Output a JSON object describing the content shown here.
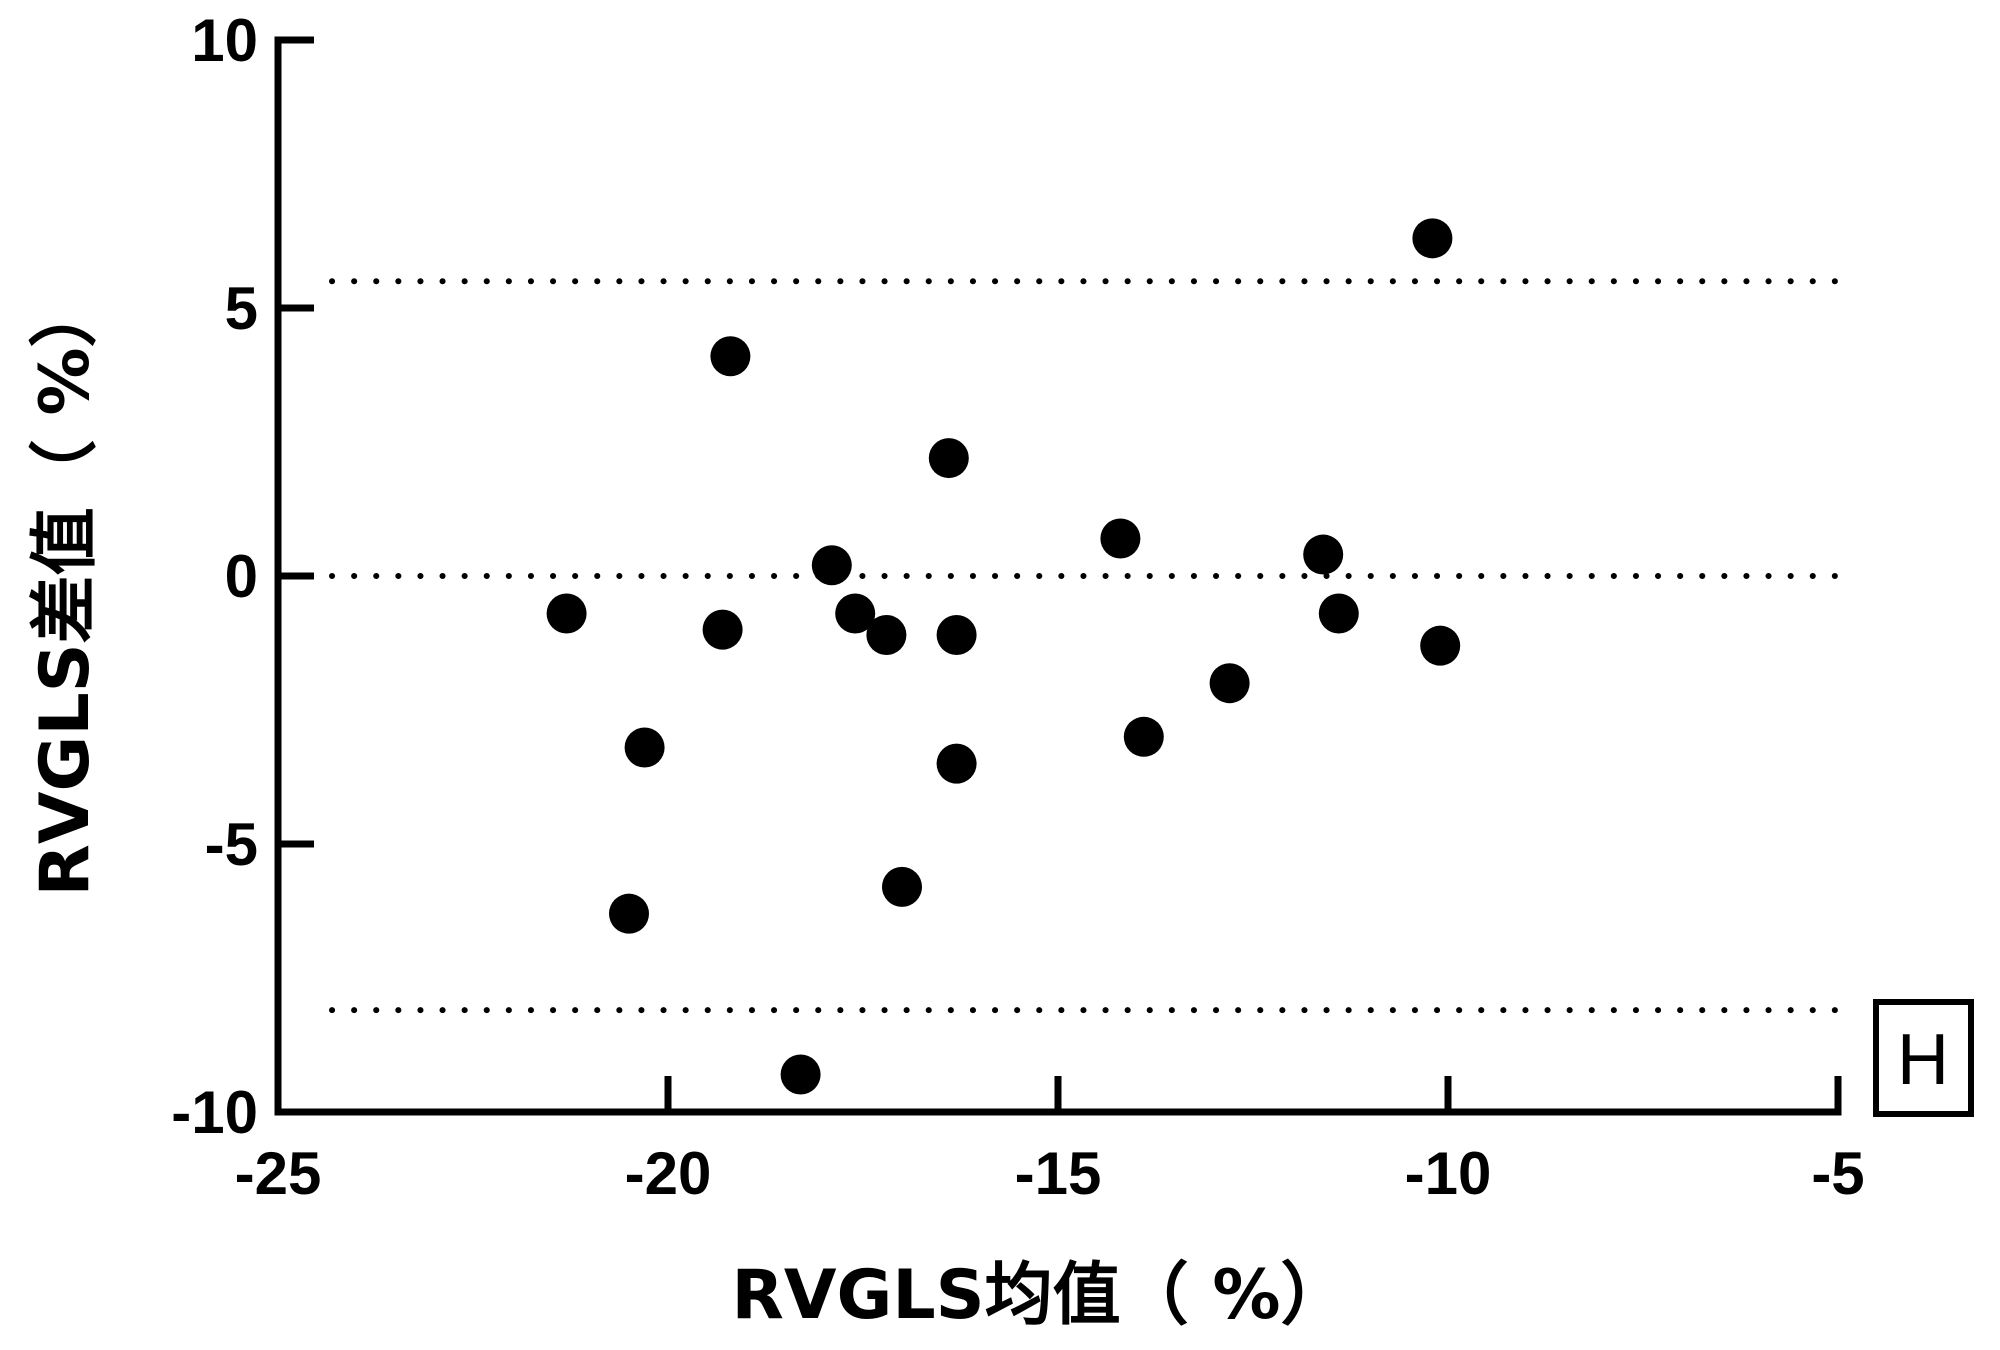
{
  "chart_data": {
    "type": "scatter",
    "title": "",
    "xlabel": "RVGLS均值（ %）",
    "ylabel": "RVGLS差值（ %）",
    "panel_label": "H",
    "xlim": [
      -25,
      -5
    ],
    "ylim": [
      -10,
      10
    ],
    "x_ticks": [
      -25,
      -20,
      -15,
      -10,
      -5
    ],
    "y_ticks": [
      -10,
      -5,
      0,
      5,
      10
    ],
    "x_tick_labels": [
      "-25",
      "-20",
      "-15",
      "-10",
      "-5"
    ],
    "y_tick_labels": [
      "-10",
      "-5",
      "0",
      "5",
      "10"
    ],
    "reference_lines": [
      5.5,
      0.0,
      -8.1
    ],
    "grid": false,
    "legend": "none",
    "marker_color": "#000000",
    "series": [
      {
        "points": [
          [
            -21.3,
            -0.7
          ],
          [
            -20.3,
            -3.2
          ],
          [
            -20.5,
            -6.3
          ],
          [
            -19.2,
            4.1
          ],
          [
            -19.3,
            -1.0
          ],
          [
            -18.3,
            -9.3
          ],
          [
            -17.9,
            0.2
          ],
          [
            -17.6,
            -0.7
          ],
          [
            -17.2,
            -1.1
          ],
          [
            -17.0,
            -5.8
          ],
          [
            -16.4,
            2.2
          ],
          [
            -16.3,
            -1.1
          ],
          [
            -16.3,
            -3.5
          ],
          [
            -14.2,
            0.7
          ],
          [
            -13.9,
            -3.0
          ],
          [
            -12.8,
            -2.0
          ],
          [
            -11.6,
            0.4
          ],
          [
            -11.4,
            -0.7
          ],
          [
            -10.2,
            6.3
          ],
          [
            -10.1,
            -1.3
          ]
        ]
      }
    ]
  }
}
